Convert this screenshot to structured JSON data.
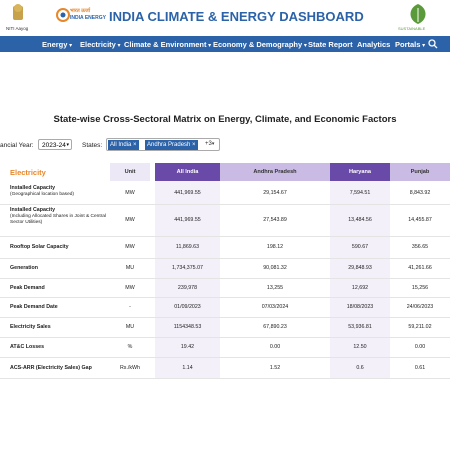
{
  "header": {
    "niti_label": "NITI Aayog",
    "energy_logo_hindi": "भारत ऊर्जा",
    "energy_logo_text": "INDIA ENERGY",
    "title": "INDIA CLIMATE & ENERGY DASHBOARD",
    "right_logo_text": "SUSTAINABLE"
  },
  "nav": {
    "items": [
      "Energy",
      "Electricity",
      "Climate & Environment",
      "Economy & Demography",
      "State Report",
      "Analytics",
      "Portals"
    ],
    "dropdown": [
      true,
      true,
      true,
      true,
      false,
      false,
      true
    ]
  },
  "matrix": {
    "title": "State-wise Cross-Sectoral Matrix on Energy, Climate, and Economic Factors",
    "filters": {
      "year_label": "ancial Year:",
      "year": "2023-24",
      "states_label": "States:",
      "chips": [
        "All India",
        "Andhra Pradesh"
      ],
      "more": "+3"
    },
    "table": {
      "section": "Electricity",
      "columns": [
        "Unit",
        "All India",
        "Andhra Pradesh",
        "Haryana",
        "Punjab"
      ],
      "rows": [
        {
          "label": "Installed Capacity",
          "sub": "(Geographical location based)",
          "unit": "MW",
          "values": [
            "441,969.55",
            "29,154.67",
            "7,594.51",
            "8,843.92"
          ]
        },
        {
          "label": "Installed Capacity",
          "sub": "(Including Allocated Shares in Joint & Central Sector Utilities)",
          "unit": "MW",
          "values": [
            "441,969.55",
            "27,543.89",
            "13,484.56",
            "14,455.87"
          ]
        },
        {
          "label": "Rooftop Solar Capacity",
          "unit": "MW",
          "values": [
            "11,869.63",
            "198.12",
            "590.67",
            "356.65"
          ]
        },
        {
          "label": "Generation",
          "unit": "MU",
          "values": [
            "1,734,375.07",
            "90,081.32",
            "29,848.93",
            "41,261.66"
          ]
        },
        {
          "label": "Peak Demand",
          "unit": "MW",
          "values": [
            "239,978",
            "13,255",
            "12,692",
            "15,256"
          ]
        },
        {
          "label": "Peak Demand Date",
          "unit": "-",
          "values": [
            "01/09/2023",
            "07/03/2024",
            "18/08/2023",
            "24/06/2023"
          ]
        },
        {
          "label": "Electricity Sales",
          "unit": "MU",
          "values": [
            "1154348.53",
            "67,890.23",
            "53,936.81",
            "59,211.02"
          ]
        },
        {
          "label": "AT&C Losses",
          "unit": "%",
          "values": [
            "19.42",
            "0.00",
            "12.50",
            "0.00"
          ]
        },
        {
          "label": "ACS-ARR (Electricity Sales) Gap",
          "unit": "Rs./kWh",
          "values": [
            "1.14",
            "1.52",
            "0.6",
            "0.61"
          ]
        }
      ]
    }
  }
}
